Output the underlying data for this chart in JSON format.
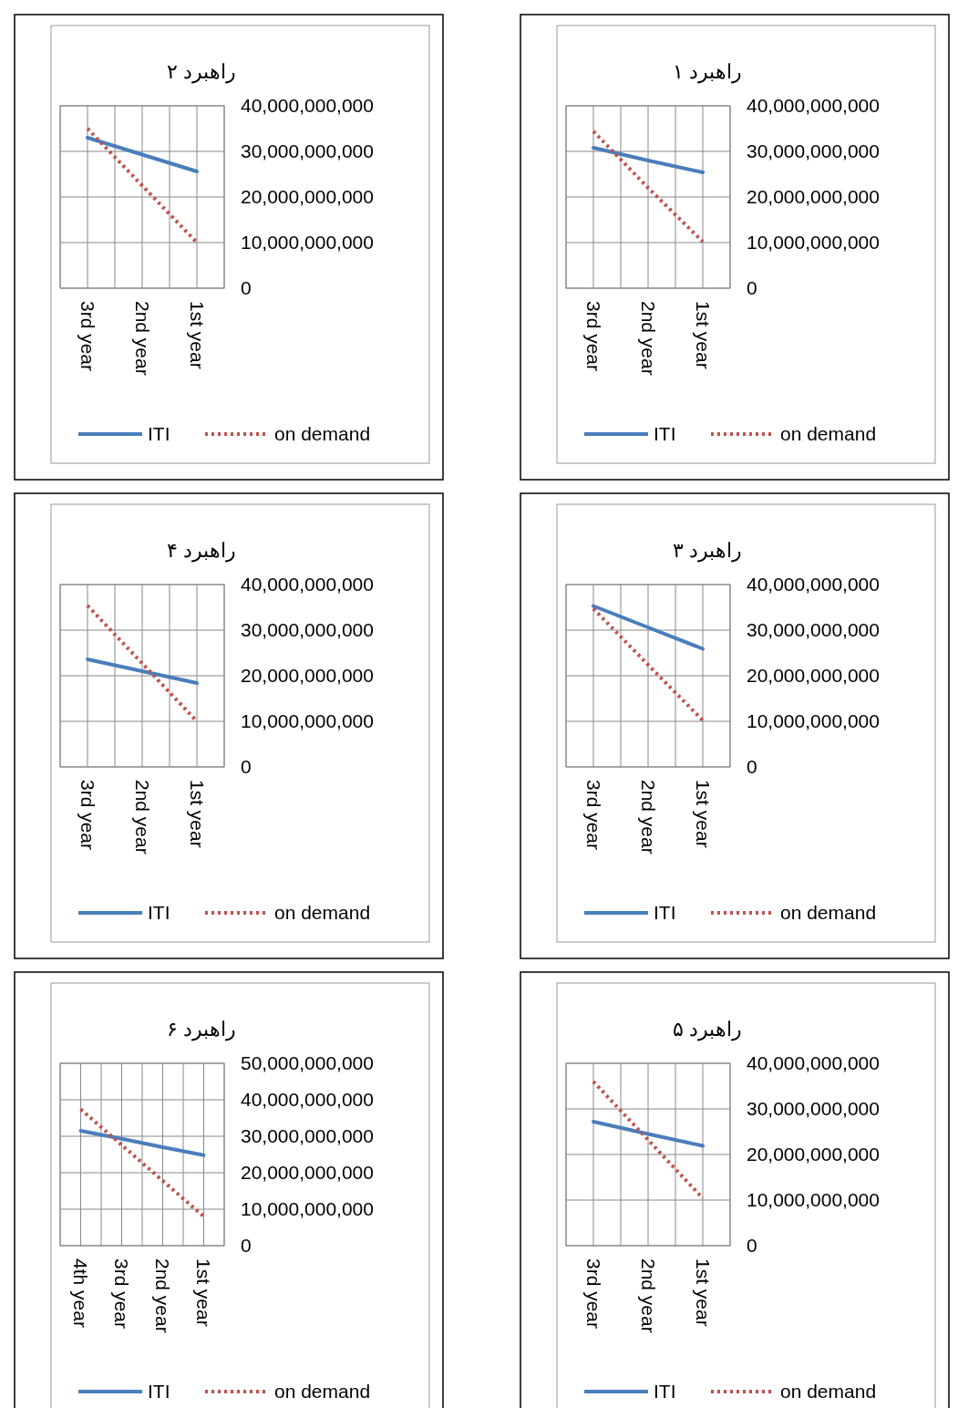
{
  "chart_data": [
    {
      "type": "line",
      "title": "راهبرد ۱",
      "categories": [
        "3rd year",
        "2nd year",
        "1st year"
      ],
      "ylim": [
        0,
        40000000000
      ],
      "yticks": [
        {
          "value": 0,
          "label": "0"
        },
        {
          "value": 10000000000,
          "label": "10,000,000,000"
        },
        {
          "value": 20000000000,
          "label": "20,000,000,000"
        },
        {
          "value": 30000000000,
          "label": "30,000,000,000"
        },
        {
          "value": 40000000000,
          "label": "40,000,000,000"
        }
      ],
      "grid": true,
      "legend": "bottom",
      "marker": "none",
      "series": [
        {
          "name": "ITI",
          "color": "#4a7ebb",
          "line_style": "solid",
          "values": [
            30800000000,
            28000000000,
            25400000000
          ]
        },
        {
          "name": "on demand",
          "color": "#c0504d",
          "line_style": "dotted",
          "values": [
            34400000000,
            22000000000,
            10200000000
          ]
        }
      ]
    },
    {
      "type": "line",
      "title": "راهبرد ۲",
      "categories": [
        "3rd year",
        "2nd year",
        "1st year"
      ],
      "ylim": [
        0,
        40000000000
      ],
      "yticks": [
        {
          "value": 0,
          "label": "0"
        },
        {
          "value": 10000000000,
          "label": "10,000,000,000"
        },
        {
          "value": 20000000000,
          "label": "20,000,000,000"
        },
        {
          "value": 30000000000,
          "label": "30,000,000,000"
        },
        {
          "value": 40000000000,
          "label": "40,000,000,000"
        }
      ],
      "grid": true,
      "legend": "bottom",
      "marker": "none",
      "series": [
        {
          "name": "ITI",
          "color": "#4a7ebb",
          "line_style": "solid",
          "values": [
            33000000000,
            29300000000,
            25600000000
          ]
        },
        {
          "name": "on demand",
          "color": "#c0504d",
          "line_style": "dotted",
          "values": [
            35000000000,
            22500000000,
            10000000000
          ]
        }
      ]
    },
    {
      "type": "line",
      "title": "راهبرد ۳",
      "categories": [
        "3rd year",
        "2nd year",
        "1st year"
      ],
      "ylim": [
        0,
        40000000000
      ],
      "yticks": [
        {
          "value": 0,
          "label": "0"
        },
        {
          "value": 10000000000,
          "label": "10,000,000,000"
        },
        {
          "value": 20000000000,
          "label": "20,000,000,000"
        },
        {
          "value": 30000000000,
          "label": "30,000,000,000"
        },
        {
          "value": 40000000000,
          "label": "40,000,000,000"
        }
      ],
      "grid": true,
      "legend": "bottom",
      "marker": "none",
      "series": [
        {
          "name": "ITI",
          "color": "#4a7ebb",
          "line_style": "solid",
          "values": [
            35300000000,
            30600000000,
            25900000000
          ]
        },
        {
          "name": "on demand",
          "color": "#c0504d",
          "line_style": "dotted",
          "values": [
            34700000000,
            22400000000,
            10200000000
          ]
        }
      ]
    },
    {
      "type": "line",
      "title": "راهبرد ۴",
      "categories": [
        "3rd year",
        "2nd year",
        "1st year"
      ],
      "ylim": [
        0,
        40000000000
      ],
      "yticks": [
        {
          "value": 0,
          "label": "0"
        },
        {
          "value": 10000000000,
          "label": "10,000,000,000"
        },
        {
          "value": 20000000000,
          "label": "20,000,000,000"
        },
        {
          "value": 30000000000,
          "label": "30,000,000,000"
        },
        {
          "value": 40000000000,
          "label": "40,000,000,000"
        }
      ],
      "grid": true,
      "legend": "bottom",
      "marker": "none",
      "series": [
        {
          "name": "ITI",
          "color": "#4a7ebb",
          "line_style": "solid",
          "values": [
            23600000000,
            21000000000,
            18400000000
          ]
        },
        {
          "name": "on demand",
          "color": "#c0504d",
          "line_style": "dotted",
          "values": [
            35400000000,
            22700000000,
            10000000000
          ]
        }
      ]
    },
    {
      "type": "line",
      "title": "راهبرد ۵",
      "categories": [
        "3rd year",
        "2nd year",
        "1st year"
      ],
      "ylim": [
        0,
        40000000000
      ],
      "yticks": [
        {
          "value": 0,
          "label": "0"
        },
        {
          "value": 10000000000,
          "label": "10,000,000,000"
        },
        {
          "value": 20000000000,
          "label": "20,000,000,000"
        },
        {
          "value": 30000000000,
          "label": "30,000,000,000"
        },
        {
          "value": 40000000000,
          "label": "40,000,000,000"
        }
      ],
      "grid": true,
      "legend": "bottom",
      "marker": "none",
      "series": [
        {
          "name": "ITI",
          "color": "#4a7ebb",
          "line_style": "solid",
          "values": [
            27200000000,
            24500000000,
            21900000000
          ]
        },
        {
          "name": "on demand",
          "color": "#c0504d",
          "line_style": "dotted",
          "values": [
            36000000000,
            23200000000,
            10400000000
          ]
        }
      ]
    },
    {
      "type": "line",
      "title": "راهبرد ۶",
      "categories": [
        "4th year",
        "3rd year",
        "2nd year",
        "1st year"
      ],
      "ylim": [
        0,
        50000000000
      ],
      "yticks": [
        {
          "value": 0,
          "label": "0"
        },
        {
          "value": 10000000000,
          "label": "10,000,000,000"
        },
        {
          "value": 20000000000,
          "label": "20,000,000,000"
        },
        {
          "value": 30000000000,
          "label": "30,000,000,000"
        },
        {
          "value": 40000000000,
          "label": "40,000,000,000"
        },
        {
          "value": 50000000000,
          "label": "50,000,000,000"
        }
      ],
      "grid": true,
      "legend": "bottom",
      "marker": "none",
      "series": [
        {
          "name": "ITI",
          "color": "#4a7ebb",
          "line_style": "solid",
          "values": [
            31500000000,
            29300000000,
            27000000000,
            24800000000
          ]
        },
        {
          "name": "on demand",
          "color": "#c0504d",
          "line_style": "dotted",
          "values": [
            37400000000,
            27600000000,
            17800000000,
            8000000000
          ]
        }
      ]
    }
  ]
}
